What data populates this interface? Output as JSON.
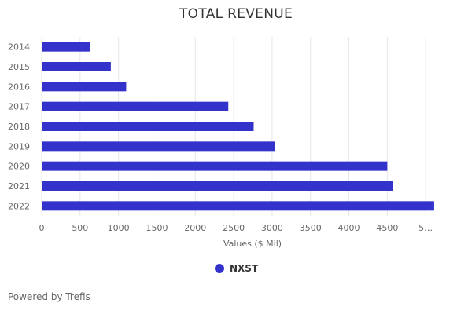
{
  "chart_data": {
    "type": "bar",
    "orientation": "horizontal",
    "title": "TOTAL REVENUE",
    "xlabel": "Values ($ Mil)",
    "ylabel": "",
    "categories": [
      "2014",
      "2015",
      "2016",
      "2017",
      "2018",
      "2019",
      "2020",
      "2021",
      "2022"
    ],
    "series": [
      {
        "name": "NXST",
        "color": "#3333cc",
        "values": [
          630,
          900,
          1100,
          2430,
          2760,
          3040,
          4500,
          4570,
          5110
        ]
      }
    ],
    "xlim": [
      0,
      5500
    ],
    "x_ticks": [
      "0",
      "500",
      "1000",
      "1500",
      "2000",
      "2500",
      "3000",
      "3500",
      "4000",
      "4500",
      "5…"
    ],
    "grid": "vertical",
    "legend_position": "bottom-center"
  },
  "credits": "Powered by Trefis"
}
